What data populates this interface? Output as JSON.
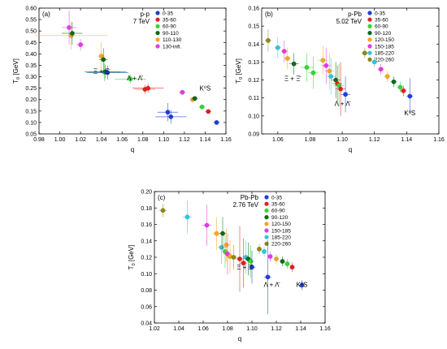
{
  "chart_data": [
    {
      "type": "scatter",
      "panel_tag": "(a)",
      "system": "p-p",
      "energy": "7 TeV",
      "xlabel": "q",
      "ylabel": "T",
      "ylabel_sub": "0",
      "ylabel_unit": " [GeV]",
      "xlim": [
        0.98,
        1.16
      ],
      "ylim": [
        0.05,
        0.6
      ],
      "x_ticks": [
        "0.98",
        "1.00",
        "1.02",
        "1.04",
        "1.06",
        "1.08",
        "1.10",
        "1.12",
        "1.14",
        "1.16"
      ],
      "y_ticks": [
        "0.05",
        "0.10",
        "0.15",
        "0.20",
        "0.25",
        "0.30",
        "0.35",
        "0.40",
        "0.45",
        "0.50",
        "0.55",
        "0.60"
      ],
      "legend_position": "top-right",
      "legend": [
        {
          "label": "0-35",
          "color": "#1f3fd6"
        },
        {
          "label": "35-60",
          "color": "#e02020"
        },
        {
          "label": "60-90",
          "color": "#33d633"
        },
        {
          "label": "90-110",
          "color": "#0b6b14"
        },
        {
          "label": "110-130",
          "color": "#f5a623"
        },
        {
          "label": "130-infi.",
          "color": "#e53ae5"
        }
      ],
      "annotations": [
        {
          "text": "Ξ + Ξ̄",
          "x": 1.04,
          "y": 0.315
        },
        {
          "text": "Λ + Λ̄",
          "x": 1.072,
          "y": 0.285
        },
        {
          "text": "K⁰S",
          "x": 1.14,
          "y": 0.24
        }
      ],
      "points": [
        {
          "x": 1.009,
          "y": 0.515,
          "xerr": 0.007,
          "yerr": 0.075,
          "c": 5
        },
        {
          "x": 1.011,
          "y": 0.48,
          "xerr": 0.035,
          "yerr": 0.06,
          "c": 4
        },
        {
          "x": 1.012,
          "y": 0.49,
          "xerr": 0.01,
          "yerr": 0.05,
          "c": 3
        },
        {
          "x": 1.02,
          "y": 0.44,
          "xerr": 0.004,
          "yerr": 0.025,
          "c": 5
        },
        {
          "x": 1.04,
          "y": 0.39,
          "xerr": 0.004,
          "yerr": 0.06,
          "c": 4
        },
        {
          "x": 1.042,
          "y": 0.375,
          "xerr": 0.004,
          "yerr": 0.05,
          "c": 3
        },
        {
          "x": 1.043,
          "y": 0.32,
          "xerr": 0.015,
          "yerr": 0.04,
          "c": 2
        },
        {
          "x": 1.044,
          "y": 0.322,
          "xerr": 0.02,
          "yerr": 0.03,
          "c": 3
        },
        {
          "x": 1.046,
          "y": 0.318,
          "xerr": 0.02,
          "yerr": 0.03,
          "c": 0
        },
        {
          "x": 1.068,
          "y": 0.29,
          "xerr": 0.015,
          "yerr": 0.02,
          "c": 2
        },
        {
          "x": 1.082,
          "y": 0.245,
          "xerr": 0.01,
          "yerr": 0.02,
          "c": 1
        },
        {
          "x": 1.085,
          "y": 0.25,
          "xerr": 0.015,
          "yerr": 0.02,
          "c": 1
        },
        {
          "x": 1.104,
          "y": 0.145,
          "xerr": 0.01,
          "yerr": 0.04,
          "c": 0
        },
        {
          "x": 1.107,
          "y": 0.125,
          "xerr": 0.015,
          "yerr": 0.03,
          "c": 0
        },
        {
          "x": 1.118,
          "y": 0.232,
          "xerr": 0.003,
          "yerr": 0.008,
          "c": 5
        },
        {
          "x": 1.128,
          "y": 0.2,
          "xerr": 0.003,
          "yerr": 0.008,
          "c": 4
        },
        {
          "x": 1.13,
          "y": 0.205,
          "xerr": 0.003,
          "yerr": 0.008,
          "c": 3
        },
        {
          "x": 1.137,
          "y": 0.168,
          "xerr": 0.003,
          "yerr": 0.008,
          "c": 2
        },
        {
          "x": 1.143,
          "y": 0.148,
          "xerr": 0.003,
          "yerr": 0.008,
          "c": 1
        },
        {
          "x": 1.151,
          "y": 0.1,
          "xerr": 0.003,
          "yerr": 0.008,
          "c": 0
        }
      ]
    },
    {
      "type": "scatter",
      "panel_tag": "(b)",
      "system": "p-Pb",
      "energy": "5.02 TeV",
      "xlabel": "q",
      "ylabel": "T",
      "ylabel_sub": "0",
      "ylabel_unit": " [GeV]",
      "xlim": [
        1.05,
        1.16
      ],
      "ylim": [
        0.09,
        0.16
      ],
      "x_ticks": [
        "1.06",
        "1.08",
        "1.10",
        "1.12",
        "1.14",
        "1.16"
      ],
      "y_ticks": [
        "0.09",
        "0.10",
        "0.11",
        "0.12",
        "0.13",
        "0.14",
        "0.15",
        "0.16"
      ],
      "legend_position": "top-right",
      "legend": [
        {
          "label": "0-35",
          "color": "#1f3fd6"
        },
        {
          "label": "35-60",
          "color": "#e02020"
        },
        {
          "label": "60-90",
          "color": "#33d633"
        },
        {
          "label": "90-120",
          "color": "#0b6b14"
        },
        {
          "label": "120-150",
          "color": "#f5a623"
        },
        {
          "label": "150-185",
          "color": "#e53ae5"
        },
        {
          "label": "185-220",
          "color": "#34c3e0"
        },
        {
          "label": "220-260",
          "color": "#8a8a1a"
        }
      ],
      "annotations": [
        {
          "text": "Ξ + Ξ̄",
          "x": 1.069,
          "y": 0.1195
        },
        {
          "text": "Λ + Λ̄",
          "x": 1.1,
          "y": 0.1055
        },
        {
          "text": "K⁰S",
          "x": 1.142,
          "y": 0.1005
        }
      ],
      "points": [
        {
          "x": 1.054,
          "y": 0.142,
          "xerr": 0.002,
          "yerr": 0.006,
          "c": 7
        },
        {
          "x": 1.06,
          "y": 0.138,
          "xerr": 0.002,
          "yerr": 0.006,
          "c": 6
        },
        {
          "x": 1.064,
          "y": 0.136,
          "xerr": 0.002,
          "yerr": 0.006,
          "c": 5
        },
        {
          "x": 1.066,
          "y": 0.132,
          "xerr": 0.002,
          "yerr": 0.006,
          "c": 4
        },
        {
          "x": 1.07,
          "y": 0.129,
          "xerr": 0.003,
          "yerr": 0.006,
          "c": 3
        },
        {
          "x": 1.078,
          "y": 0.127,
          "xerr": 0.004,
          "yerr": 0.008,
          "c": 2
        },
        {
          "x": 1.082,
          "y": 0.124,
          "xerr": 0.003,
          "yerr": 0.009,
          "c": 2
        },
        {
          "x": 1.088,
          "y": 0.131,
          "xerr": 0.003,
          "yerr": 0.008,
          "c": 4
        },
        {
          "x": 1.09,
          "y": 0.128,
          "xerr": 0.003,
          "yerr": 0.01,
          "c": 5
        },
        {
          "x": 1.092,
          "y": 0.125,
          "xerr": 0.003,
          "yerr": 0.01,
          "c": 4
        },
        {
          "x": 1.093,
          "y": 0.122,
          "xerr": 0.003,
          "yerr": 0.01,
          "c": 6
        },
        {
          "x": 1.096,
          "y": 0.12,
          "xerr": 0.003,
          "yerr": 0.01,
          "c": 3
        },
        {
          "x": 1.097,
          "y": 0.118,
          "xerr": 0.003,
          "yerr": 0.01,
          "c": 1
        },
        {
          "x": 1.098,
          "y": 0.117,
          "xerr": 0.003,
          "yerr": 0.012,
          "c": 2
        },
        {
          "x": 1.099,
          "y": 0.115,
          "xerr": 0.003,
          "yerr": 0.015,
          "c": 1
        },
        {
          "x": 1.102,
          "y": 0.112,
          "xerr": 0.003,
          "yerr": 0.01,
          "c": 0
        },
        {
          "x": 1.114,
          "y": 0.135,
          "xerr": 0.002,
          "yerr": 0.003,
          "c": 7
        },
        {
          "x": 1.12,
          "y": 0.13,
          "xerr": 0.002,
          "yerr": 0.003,
          "c": 6
        },
        {
          "x": 1.124,
          "y": 0.126,
          "xerr": 0.002,
          "yerr": 0.003,
          "c": 5
        },
        {
          "x": 1.128,
          "y": 0.122,
          "xerr": 0.002,
          "yerr": 0.003,
          "c": 4
        },
        {
          "x": 1.132,
          "y": 0.119,
          "xerr": 0.002,
          "yerr": 0.003,
          "c": 3
        },
        {
          "x": 1.136,
          "y": 0.116,
          "xerr": 0.002,
          "yerr": 0.003,
          "c": 2
        },
        {
          "x": 1.138,
          "y": 0.114,
          "xerr": 0.002,
          "yerr": 0.003,
          "c": 1
        },
        {
          "x": 1.142,
          "y": 0.111,
          "xerr": 0.002,
          "yerr": 0.01,
          "c": 0
        }
      ]
    },
    {
      "type": "scatter",
      "panel_tag": "(c)",
      "system": "Pb-Pb",
      "energy": "2.76 TeV",
      "xlabel": "q",
      "ylabel": "T",
      "ylabel_sub": "0",
      "ylabel_unit": " [GeV]",
      "xlim": [
        1.02,
        1.16
      ],
      "ylim": [
        0.04,
        0.2
      ],
      "x_ticks": [
        "1.02",
        "1.04",
        "1.06",
        "1.08",
        "1.10",
        "1.12",
        "1.14",
        "1.16"
      ],
      "y_ticks": [
        "0.04",
        "0.06",
        "0.08",
        "0.10",
        "0.12",
        "0.14",
        "0.16",
        "0.18",
        "0.20"
      ],
      "legend_position": "top-right",
      "legend": [
        {
          "label": "0-35",
          "color": "#1f3fd6"
        },
        {
          "label": "35-60",
          "color": "#e02020"
        },
        {
          "label": "60-90",
          "color": "#33d633"
        },
        {
          "label": "90-120",
          "color": "#0b6b14"
        },
        {
          "label": "120-150",
          "color": "#f5a623"
        },
        {
          "label": "150-185",
          "color": "#e53ae5"
        },
        {
          "label": "185-220",
          "color": "#34c3e0"
        },
        {
          "label": "220-260",
          "color": "#8a8a1a"
        }
      ],
      "annotations": [
        {
          "text": "Ξ + Ξ̄",
          "x": 1.094,
          "y": 0.105
        },
        {
          "text": "Λ + Λ̄",
          "x": 1.116,
          "y": 0.084
        },
        {
          "text": "K⁰S",
          "x": 1.141,
          "y": 0.084
        }
      ],
      "points": [
        {
          "x": 1.027,
          "y": 0.177,
          "xerr": 0.003,
          "yerr": 0.008,
          "c": 7
        },
        {
          "x": 1.047,
          "y": 0.169,
          "xerr": 0.004,
          "yerr": 0.02,
          "c": 6
        },
        {
          "x": 1.063,
          "y": 0.159,
          "xerr": 0.004,
          "yerr": 0.025,
          "c": 5
        },
        {
          "x": 1.071,
          "y": 0.149,
          "xerr": 0.003,
          "yerr": 0.02,
          "c": 4
        },
        {
          "x": 1.075,
          "y": 0.132,
          "xerr": 0.003,
          "yerr": 0.02,
          "c": 6
        },
        {
          "x": 1.076,
          "y": 0.149,
          "xerr": 0.003,
          "yerr": 0.02,
          "c": 3
        },
        {
          "x": 1.078,
          "y": 0.127,
          "xerr": 0.003,
          "yerr": 0.02,
          "c": 2
        },
        {
          "x": 1.079,
          "y": 0.135,
          "xerr": 0.003,
          "yerr": 0.02,
          "c": 4
        },
        {
          "x": 1.08,
          "y": 0.124,
          "xerr": 0.003,
          "yerr": 0.025,
          "c": 5
        },
        {
          "x": 1.082,
          "y": 0.121,
          "xerr": 0.003,
          "yerr": 0.02,
          "c": 4
        },
        {
          "x": 1.085,
          "y": 0.12,
          "xerr": 0.003,
          "yerr": 0.015,
          "c": 7
        },
        {
          "x": 1.09,
          "y": 0.118,
          "xerr": 0.003,
          "yerr": 0.04,
          "c": 1
        },
        {
          "x": 1.093,
          "y": 0.113,
          "xerr": 0.003,
          "yerr": 0.03,
          "c": 1
        },
        {
          "x": 1.095,
          "y": 0.12,
          "xerr": 0.003,
          "yerr": 0.02,
          "c": 6
        },
        {
          "x": 1.097,
          "y": 0.118,
          "xerr": 0.003,
          "yerr": 0.02,
          "c": 3
        },
        {
          "x": 1.099,
          "y": 0.115,
          "xerr": 0.003,
          "yerr": 0.02,
          "c": 2
        },
        {
          "x": 1.1,
          "y": 0.108,
          "xerr": 0.003,
          "yerr": 0.02,
          "c": 0
        },
        {
          "x": 1.106,
          "y": 0.13,
          "xerr": 0.002,
          "yerr": 0.006,
          "c": 7
        },
        {
          "x": 1.11,
          "y": 0.127,
          "xerr": 0.002,
          "yerr": 0.006,
          "c": 6
        },
        {
          "x": 1.113,
          "y": 0.096,
          "xerr": 0.003,
          "yerr": 0.045,
          "c": 0
        },
        {
          "x": 1.115,
          "y": 0.121,
          "xerr": 0.002,
          "yerr": 0.006,
          "c": 5
        },
        {
          "x": 1.12,
          "y": 0.118,
          "xerr": 0.002,
          "yerr": 0.006,
          "c": 4
        },
        {
          "x": 1.125,
          "y": 0.115,
          "xerr": 0.002,
          "yerr": 0.006,
          "c": 3
        },
        {
          "x": 1.129,
          "y": 0.112,
          "xerr": 0.002,
          "yerr": 0.006,
          "c": 2
        },
        {
          "x": 1.133,
          "y": 0.108,
          "xerr": 0.002,
          "yerr": 0.006,
          "c": 1
        },
        {
          "x": 1.141,
          "y": 0.086,
          "xerr": 0.002,
          "yerr": 0.006,
          "c": 0
        }
      ]
    }
  ]
}
